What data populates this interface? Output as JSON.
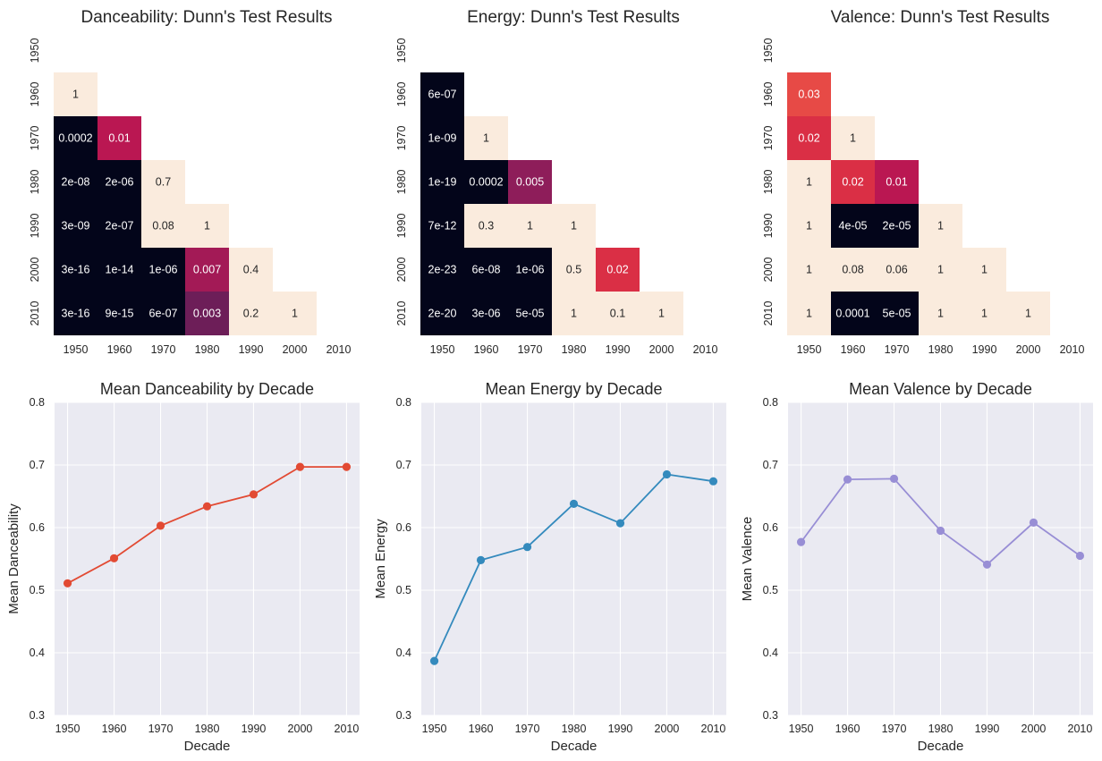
{
  "chart_data": [
    {
      "type": "heatmap",
      "title": "Danceability: Dunn's Test Results",
      "rows": [
        "1950",
        "1960",
        "1970",
        "1980",
        "1990",
        "2000",
        "2010"
      ],
      "cols": [
        "1950",
        "1960",
        "1970",
        "1980",
        "1990",
        "2000",
        "2010"
      ],
      "lower_triangle": true,
      "cells": [
        {
          "r": 1,
          "c": 0,
          "v": 1,
          "label": "1"
        },
        {
          "r": 2,
          "c": 0,
          "v": 0.0002,
          "label": "0.0002"
        },
        {
          "r": 2,
          "c": 1,
          "v": 0.01,
          "label": "0.01"
        },
        {
          "r": 3,
          "c": 0,
          "v": 2e-08,
          "label": "2e-08"
        },
        {
          "r": 3,
          "c": 1,
          "v": 2e-06,
          "label": "2e-06"
        },
        {
          "r": 3,
          "c": 2,
          "v": 0.7,
          "label": "0.7"
        },
        {
          "r": 4,
          "c": 0,
          "v": 3e-09,
          "label": "3e-09"
        },
        {
          "r": 4,
          "c": 1,
          "v": 2e-07,
          "label": "2e-07"
        },
        {
          "r": 4,
          "c": 2,
          "v": 0.08,
          "label": "0.08"
        },
        {
          "r": 4,
          "c": 3,
          "v": 1,
          "label": "1"
        },
        {
          "r": 5,
          "c": 0,
          "v": 3e-16,
          "label": "3e-16"
        },
        {
          "r": 5,
          "c": 1,
          "v": 1e-14,
          "label": "1e-14"
        },
        {
          "r": 5,
          "c": 2,
          "v": 1e-06,
          "label": "1e-06"
        },
        {
          "r": 5,
          "c": 3,
          "v": 0.007,
          "label": "0.007"
        },
        {
          "r": 5,
          "c": 4,
          "v": 0.4,
          "label": "0.4"
        },
        {
          "r": 6,
          "c": 0,
          "v": 3e-16,
          "label": "3e-16"
        },
        {
          "r": 6,
          "c": 1,
          "v": 9e-15,
          "label": "9e-15"
        },
        {
          "r": 6,
          "c": 2,
          "v": 6e-07,
          "label": "6e-07"
        },
        {
          "r": 6,
          "c": 3,
          "v": 0.003,
          "label": "0.003"
        },
        {
          "r": 6,
          "c": 4,
          "v": 0.2,
          "label": "0.2"
        },
        {
          "r": 6,
          "c": 5,
          "v": 1,
          "label": "1"
        }
      ]
    },
    {
      "type": "heatmap",
      "title": "Energy: Dunn's Test Results",
      "rows": [
        "1950",
        "1960",
        "1970",
        "1980",
        "1990",
        "2000",
        "2010"
      ],
      "cols": [
        "1950",
        "1960",
        "1970",
        "1980",
        "1990",
        "2000",
        "2010"
      ],
      "lower_triangle": true,
      "cells": [
        {
          "r": 1,
          "c": 0,
          "v": 6e-07,
          "label": "6e-07"
        },
        {
          "r": 2,
          "c": 0,
          "v": 1e-09,
          "label": "1e-09"
        },
        {
          "r": 2,
          "c": 1,
          "v": 1,
          "label": "1"
        },
        {
          "r": 3,
          "c": 0,
          "v": 1e-19,
          "label": "1e-19"
        },
        {
          "r": 3,
          "c": 1,
          "v": 0.0002,
          "label": "0.0002"
        },
        {
          "r": 3,
          "c": 2,
          "v": 0.005,
          "label": "0.005"
        },
        {
          "r": 4,
          "c": 0,
          "v": 7e-12,
          "label": "7e-12"
        },
        {
          "r": 4,
          "c": 1,
          "v": 0.3,
          "label": "0.3"
        },
        {
          "r": 4,
          "c": 2,
          "v": 1,
          "label": "1"
        },
        {
          "r": 4,
          "c": 3,
          "v": 1,
          "label": "1"
        },
        {
          "r": 5,
          "c": 0,
          "v": 2e-23,
          "label": "2e-23"
        },
        {
          "r": 5,
          "c": 1,
          "v": 6e-08,
          "label": "6e-08"
        },
        {
          "r": 5,
          "c": 2,
          "v": 1e-06,
          "label": "1e-06"
        },
        {
          "r": 5,
          "c": 3,
          "v": 0.5,
          "label": "0.5"
        },
        {
          "r": 5,
          "c": 4,
          "v": 0.02,
          "label": "0.02"
        },
        {
          "r": 6,
          "c": 0,
          "v": 2e-20,
          "label": "2e-20"
        },
        {
          "r": 6,
          "c": 1,
          "v": 3e-06,
          "label": "3e-06"
        },
        {
          "r": 6,
          "c": 2,
          "v": 5e-05,
          "label": "5e-05"
        },
        {
          "r": 6,
          "c": 3,
          "v": 1,
          "label": "1"
        },
        {
          "r": 6,
          "c": 4,
          "v": 0.1,
          "label": "0.1"
        },
        {
          "r": 6,
          "c": 5,
          "v": 1,
          "label": "1"
        }
      ]
    },
    {
      "type": "heatmap",
      "title": "Valence: Dunn's Test Results",
      "rows": [
        "1950",
        "1960",
        "1970",
        "1980",
        "1990",
        "2000",
        "2010"
      ],
      "cols": [
        "1950",
        "1960",
        "1970",
        "1980",
        "1990",
        "2000",
        "2010"
      ],
      "lower_triangle": true,
      "cells": [
        {
          "r": 1,
          "c": 0,
          "v": 0.03,
          "label": "0.03"
        },
        {
          "r": 2,
          "c": 0,
          "v": 0.02,
          "label": "0.02"
        },
        {
          "r": 2,
          "c": 1,
          "v": 1,
          "label": "1"
        },
        {
          "r": 3,
          "c": 0,
          "v": 1,
          "label": "1"
        },
        {
          "r": 3,
          "c": 1,
          "v": 0.02,
          "label": "0.02"
        },
        {
          "r": 3,
          "c": 2,
          "v": 0.01,
          "label": "0.01"
        },
        {
          "r": 4,
          "c": 0,
          "v": 1,
          "label": "1"
        },
        {
          "r": 4,
          "c": 1,
          "v": 4e-05,
          "label": "4e-05"
        },
        {
          "r": 4,
          "c": 2,
          "v": 2e-05,
          "label": "2e-05"
        },
        {
          "r": 4,
          "c": 3,
          "v": 1,
          "label": "1"
        },
        {
          "r": 5,
          "c": 0,
          "v": 1,
          "label": "1"
        },
        {
          "r": 5,
          "c": 1,
          "v": 0.08,
          "label": "0.08"
        },
        {
          "r": 5,
          "c": 2,
          "v": 0.06,
          "label": "0.06"
        },
        {
          "r": 5,
          "c": 3,
          "v": 1,
          "label": "1"
        },
        {
          "r": 5,
          "c": 4,
          "v": 1,
          "label": "1"
        },
        {
          "r": 6,
          "c": 0,
          "v": 1,
          "label": "1"
        },
        {
          "r": 6,
          "c": 1,
          "v": 0.0001,
          "label": "0.0001"
        },
        {
          "r": 6,
          "c": 2,
          "v": 5e-05,
          "label": "5e-05"
        },
        {
          "r": 6,
          "c": 3,
          "v": 1,
          "label": "1"
        },
        {
          "r": 6,
          "c": 4,
          "v": 1,
          "label": "1"
        },
        {
          "r": 6,
          "c": 5,
          "v": 1,
          "label": "1"
        }
      ]
    },
    {
      "type": "line",
      "title": "Mean Danceability by Decade",
      "xlabel": "Decade",
      "ylabel": "Mean Danceability",
      "x": [
        1950,
        1960,
        1970,
        1980,
        1990,
        2000,
        2010
      ],
      "values": [
        0.511,
        0.551,
        0.603,
        0.634,
        0.653,
        0.697,
        0.697
      ],
      "ylim": [
        0.3,
        0.8
      ],
      "yticks": [
        0.3,
        0.4,
        0.5,
        0.6,
        0.7,
        0.8
      ],
      "grid": true,
      "color": "#E24A33"
    },
    {
      "type": "line",
      "title": "Mean Energy by Decade",
      "xlabel": "Decade",
      "ylabel": "Mean Energy",
      "x": [
        1950,
        1960,
        1970,
        1980,
        1990,
        2000,
        2010
      ],
      "values": [
        0.387,
        0.548,
        0.569,
        0.638,
        0.607,
        0.685,
        0.674
      ],
      "ylim": [
        0.3,
        0.8
      ],
      "yticks": [
        0.3,
        0.4,
        0.5,
        0.6,
        0.7,
        0.8
      ],
      "grid": true,
      "color": "#348ABD"
    },
    {
      "type": "line",
      "title": "Mean Valence by Decade",
      "xlabel": "Decade",
      "ylabel": "Mean Valence",
      "x": [
        1950,
        1960,
        1970,
        1980,
        1990,
        2000,
        2010
      ],
      "values": [
        0.577,
        0.677,
        0.678,
        0.595,
        0.541,
        0.608,
        0.555
      ],
      "ylim": [
        0.3,
        0.8
      ],
      "yticks": [
        0.3,
        0.4,
        0.5,
        0.6,
        0.7,
        0.8
      ],
      "grid": true,
      "color": "#988ED5"
    }
  ]
}
